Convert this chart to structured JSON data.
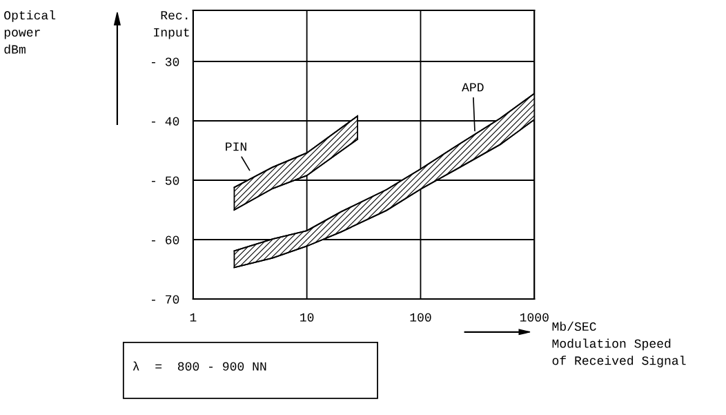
{
  "chart_data": {
    "type": "line",
    "xlabel": "Mb/SEC\nModulation Speed\nof Received Signal",
    "annotations": [
      "Rec.\nInput",
      "λ  =  800 - 900 NN",
      "Optical\npower\ndBm"
    ],
    "log": "x",
    "xlim": [
      1,
      1000
    ],
    "xticks": [
      1,
      10,
      100,
      1000
    ],
    "ylim": [
      -70,
      -21.4
    ],
    "yticks": [
      {
        "value": -30,
        "label": "- 30"
      },
      {
        "value": -40,
        "label": "- 40"
      },
      {
        "value": -50,
        "label": "- 50"
      },
      {
        "value": -60,
        "label": "- 60"
      },
      {
        "value": -70,
        "label": "- 70"
      }
    ],
    "grid": true,
    "series": [
      {
        "name": "PIN",
        "color": "#000000",
        "x": [
          2.3,
          5,
          10,
          27.9
        ],
        "values": [
          -51.2,
          -47.8,
          -45.4,
          -39.2
        ]
      },
      {
        "color": "#000000",
        "x": [
          2.3,
          5,
          10,
          27.9
        ],
        "values": [
          -55.0,
          -51.4,
          -49.2,
          -43.1
        ]
      },
      {
        "name": "APD",
        "color": "#000000",
        "x": [
          2.3,
          5,
          10,
          20,
          50,
          100,
          200,
          500,
          1000
        ],
        "values": [
          -61.9,
          -59.9,
          -58.5,
          -55.3,
          -51.6,
          -48.1,
          -44.4,
          -39.6,
          -35.4
        ]
      },
      {
        "color": "#000000",
        "x": [
          2.3,
          5,
          10,
          20,
          50,
          100,
          200,
          500,
          1000
        ],
        "values": [
          -64.7,
          -63.1,
          -61.1,
          -58.7,
          -55.1,
          -51.5,
          -48.3,
          -44.0,
          -39.8
        ]
      }
    ]
  }
}
